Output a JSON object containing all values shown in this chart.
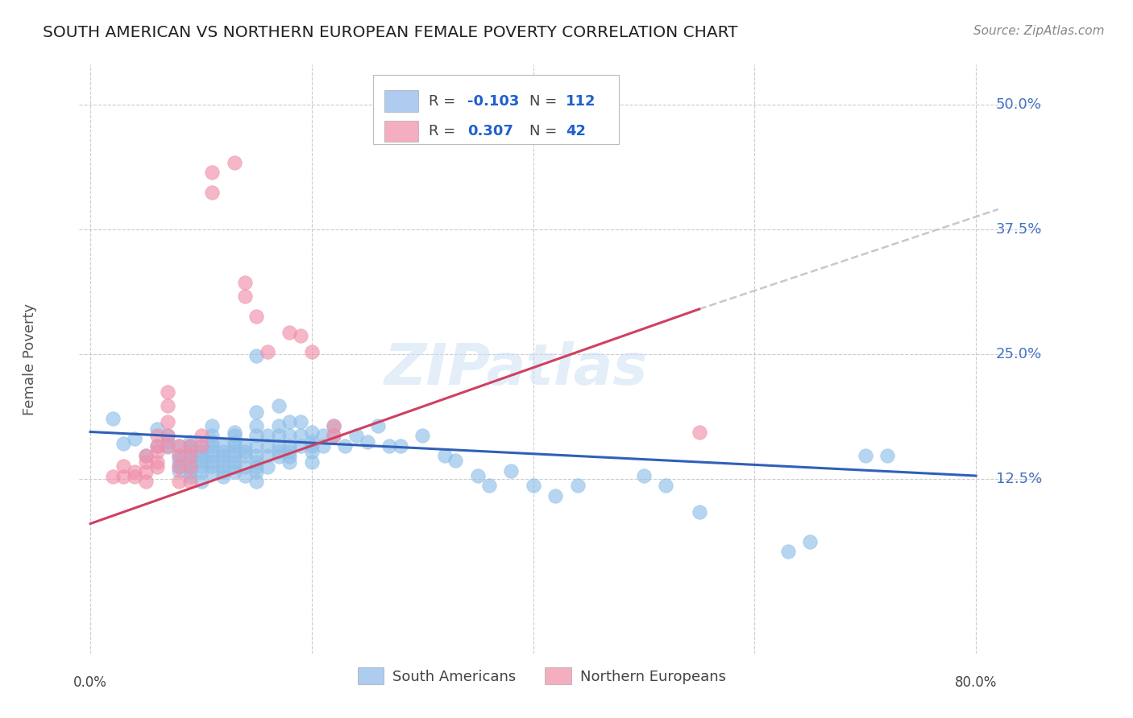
{
  "title": "SOUTH AMERICAN VS NORTHERN EUROPEAN FEMALE POVERTY CORRELATION CHART",
  "source": "Source: ZipAtlas.com",
  "ylabel": "Female Poverty",
  "ytick_vals": [
    0.125,
    0.25,
    0.375,
    0.5
  ],
  "ytick_labels": [
    "12.5%",
    "25.0%",
    "37.5%",
    "50.0%"
  ],
  "xlim": [
    0.0,
    0.8
  ],
  "ylim": [
    -0.05,
    0.54
  ],
  "legend_entries": [
    {
      "color": "#aecbf0",
      "R": "-0.103",
      "N": "112"
    },
    {
      "color": "#f5aec0",
      "R": "0.307",
      "N": "42"
    }
  ],
  "legend_labels": [
    "South Americans",
    "Northern Europeans"
  ],
  "blue_scatter_color": "#90bfe8",
  "pink_scatter_color": "#f090aa",
  "watermark_text": "ZIPatlas",
  "blue_line_color": "#3060b8",
  "pink_line_color": "#d04060",
  "dashed_line_color": "#c8c8c8",
  "blue_line": [
    [
      0.0,
      0.172
    ],
    [
      0.8,
      0.128
    ]
  ],
  "pink_line": [
    [
      0.0,
      0.08
    ],
    [
      0.55,
      0.295
    ]
  ],
  "dashed_line": [
    [
      0.55,
      0.295
    ],
    [
      0.82,
      0.395
    ]
  ],
  "blue_scatter": [
    [
      0.02,
      0.185
    ],
    [
      0.03,
      0.16
    ],
    [
      0.04,
      0.165
    ],
    [
      0.05,
      0.148
    ],
    [
      0.06,
      0.175
    ],
    [
      0.06,
      0.158
    ],
    [
      0.07,
      0.168
    ],
    [
      0.07,
      0.162
    ],
    [
      0.07,
      0.157
    ],
    [
      0.08,
      0.158
    ],
    [
      0.08,
      0.148
    ],
    [
      0.08,
      0.143
    ],
    [
      0.08,
      0.138
    ],
    [
      0.08,
      0.133
    ],
    [
      0.09,
      0.162
    ],
    [
      0.09,
      0.158
    ],
    [
      0.09,
      0.152
    ],
    [
      0.09,
      0.147
    ],
    [
      0.09,
      0.142
    ],
    [
      0.09,
      0.138
    ],
    [
      0.09,
      0.132
    ],
    [
      0.09,
      0.127
    ],
    [
      0.1,
      0.158
    ],
    [
      0.1,
      0.152
    ],
    [
      0.1,
      0.148
    ],
    [
      0.1,
      0.143
    ],
    [
      0.1,
      0.138
    ],
    [
      0.1,
      0.132
    ],
    [
      0.1,
      0.122
    ],
    [
      0.11,
      0.178
    ],
    [
      0.11,
      0.168
    ],
    [
      0.11,
      0.163
    ],
    [
      0.11,
      0.158
    ],
    [
      0.11,
      0.152
    ],
    [
      0.11,
      0.148
    ],
    [
      0.11,
      0.142
    ],
    [
      0.11,
      0.138
    ],
    [
      0.11,
      0.132
    ],
    [
      0.12,
      0.158
    ],
    [
      0.12,
      0.152
    ],
    [
      0.12,
      0.148
    ],
    [
      0.12,
      0.143
    ],
    [
      0.12,
      0.138
    ],
    [
      0.12,
      0.132
    ],
    [
      0.12,
      0.127
    ],
    [
      0.13,
      0.172
    ],
    [
      0.13,
      0.168
    ],
    [
      0.13,
      0.162
    ],
    [
      0.13,
      0.158
    ],
    [
      0.13,
      0.152
    ],
    [
      0.13,
      0.148
    ],
    [
      0.13,
      0.142
    ],
    [
      0.13,
      0.137
    ],
    [
      0.13,
      0.132
    ],
    [
      0.14,
      0.158
    ],
    [
      0.14,
      0.152
    ],
    [
      0.14,
      0.148
    ],
    [
      0.14,
      0.137
    ],
    [
      0.14,
      0.128
    ],
    [
      0.15,
      0.248
    ],
    [
      0.15,
      0.192
    ],
    [
      0.15,
      0.178
    ],
    [
      0.15,
      0.168
    ],
    [
      0.15,
      0.158
    ],
    [
      0.15,
      0.148
    ],
    [
      0.15,
      0.142
    ],
    [
      0.15,
      0.137
    ],
    [
      0.15,
      0.132
    ],
    [
      0.15,
      0.122
    ],
    [
      0.16,
      0.168
    ],
    [
      0.16,
      0.158
    ],
    [
      0.16,
      0.148
    ],
    [
      0.16,
      0.137
    ],
    [
      0.17,
      0.198
    ],
    [
      0.17,
      0.178
    ],
    [
      0.17,
      0.168
    ],
    [
      0.17,
      0.158
    ],
    [
      0.17,
      0.152
    ],
    [
      0.17,
      0.147
    ],
    [
      0.18,
      0.182
    ],
    [
      0.18,
      0.168
    ],
    [
      0.18,
      0.158
    ],
    [
      0.18,
      0.152
    ],
    [
      0.18,
      0.147
    ],
    [
      0.18,
      0.142
    ],
    [
      0.19,
      0.182
    ],
    [
      0.19,
      0.168
    ],
    [
      0.19,
      0.158
    ],
    [
      0.2,
      0.172
    ],
    [
      0.2,
      0.162
    ],
    [
      0.2,
      0.158
    ],
    [
      0.2,
      0.152
    ],
    [
      0.2,
      0.142
    ],
    [
      0.21,
      0.168
    ],
    [
      0.21,
      0.158
    ],
    [
      0.22,
      0.178
    ],
    [
      0.22,
      0.168
    ],
    [
      0.23,
      0.158
    ],
    [
      0.24,
      0.168
    ],
    [
      0.25,
      0.162
    ],
    [
      0.26,
      0.178
    ],
    [
      0.27,
      0.158
    ],
    [
      0.28,
      0.158
    ],
    [
      0.3,
      0.168
    ],
    [
      0.32,
      0.148
    ],
    [
      0.33,
      0.143
    ],
    [
      0.35,
      0.128
    ],
    [
      0.36,
      0.118
    ],
    [
      0.38,
      0.133
    ],
    [
      0.4,
      0.118
    ],
    [
      0.42,
      0.108
    ],
    [
      0.44,
      0.118
    ],
    [
      0.5,
      0.128
    ],
    [
      0.52,
      0.118
    ],
    [
      0.55,
      0.092
    ],
    [
      0.63,
      0.052
    ],
    [
      0.65,
      0.062
    ],
    [
      0.7,
      0.148
    ],
    [
      0.72,
      0.148
    ]
  ],
  "pink_scatter": [
    [
      0.02,
      0.127
    ],
    [
      0.03,
      0.138
    ],
    [
      0.03,
      0.127
    ],
    [
      0.04,
      0.132
    ],
    [
      0.04,
      0.127
    ],
    [
      0.05,
      0.148
    ],
    [
      0.05,
      0.142
    ],
    [
      0.05,
      0.132
    ],
    [
      0.05,
      0.122
    ],
    [
      0.06,
      0.168
    ],
    [
      0.06,
      0.158
    ],
    [
      0.06,
      0.152
    ],
    [
      0.06,
      0.142
    ],
    [
      0.06,
      0.137
    ],
    [
      0.07,
      0.212
    ],
    [
      0.07,
      0.198
    ],
    [
      0.07,
      0.182
    ],
    [
      0.07,
      0.168
    ],
    [
      0.07,
      0.158
    ],
    [
      0.08,
      0.158
    ],
    [
      0.08,
      0.148
    ],
    [
      0.08,
      0.137
    ],
    [
      0.08,
      0.122
    ],
    [
      0.09,
      0.158
    ],
    [
      0.09,
      0.148
    ],
    [
      0.09,
      0.137
    ],
    [
      0.09,
      0.122
    ],
    [
      0.1,
      0.168
    ],
    [
      0.1,
      0.158
    ],
    [
      0.11,
      0.432
    ],
    [
      0.11,
      0.412
    ],
    [
      0.13,
      0.442
    ],
    [
      0.14,
      0.322
    ],
    [
      0.14,
      0.308
    ],
    [
      0.15,
      0.288
    ],
    [
      0.16,
      0.252
    ],
    [
      0.18,
      0.272
    ],
    [
      0.19,
      0.268
    ],
    [
      0.2,
      0.252
    ],
    [
      0.22,
      0.178
    ],
    [
      0.22,
      0.168
    ],
    [
      0.55,
      0.172
    ]
  ]
}
